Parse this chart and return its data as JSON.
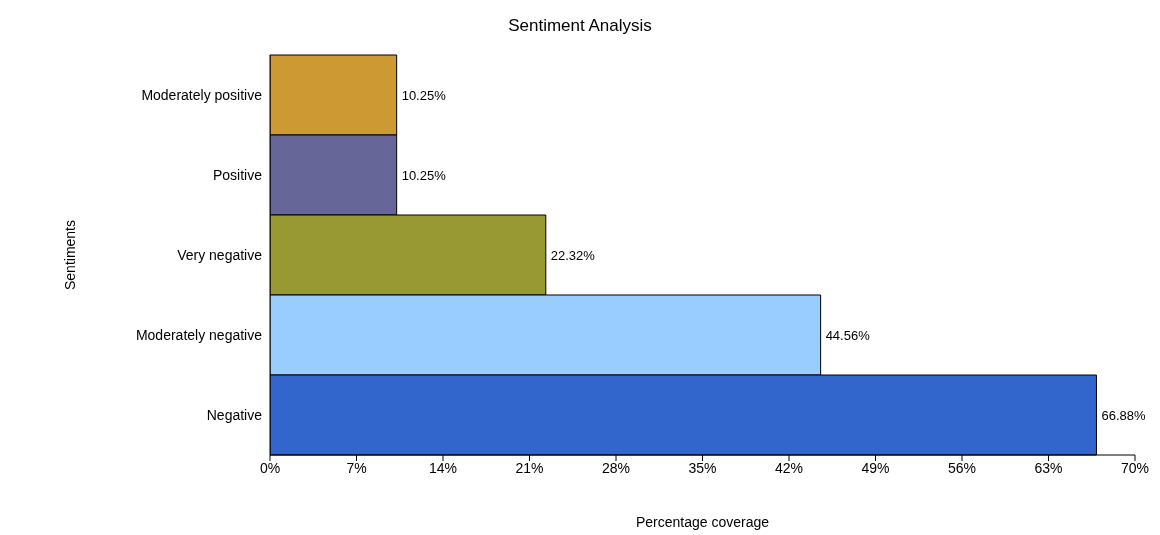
{
  "chart_data": {
    "type": "bar",
    "orientation": "horizontal",
    "title": "Sentiment Analysis",
    "xlabel": "Percentage coverage",
    "ylabel": "Sentiments",
    "categories": [
      "Moderately positive",
      "Positive",
      "Very negative",
      "Moderately negative",
      "Negative"
    ],
    "values": [
      10.25,
      10.25,
      22.32,
      44.56,
      66.88
    ],
    "colors": [
      "#cc9933",
      "#666699",
      "#999933",
      "#99ccff",
      "#3366cc"
    ],
    "value_labels": [
      "10.25%",
      "10.25%",
      "22.32%",
      "44.56%",
      "66.88%"
    ],
    "xlim": [
      0,
      70
    ],
    "xticks": [
      {
        "value": 0,
        "label": "0%"
      },
      {
        "value": 7,
        "label": "7%"
      },
      {
        "value": 14,
        "label": "14%"
      },
      {
        "value": 21,
        "label": "21%"
      },
      {
        "value": 28,
        "label": "28%"
      },
      {
        "value": 35,
        "label": "35%"
      },
      {
        "value": 42,
        "label": "42%"
      },
      {
        "value": 49,
        "label": "49%"
      },
      {
        "value": 56,
        "label": "56%"
      },
      {
        "value": 63,
        "label": "63%"
      },
      {
        "value": 70,
        "label": "70%"
      }
    ],
    "grid": false,
    "legend": false
  }
}
